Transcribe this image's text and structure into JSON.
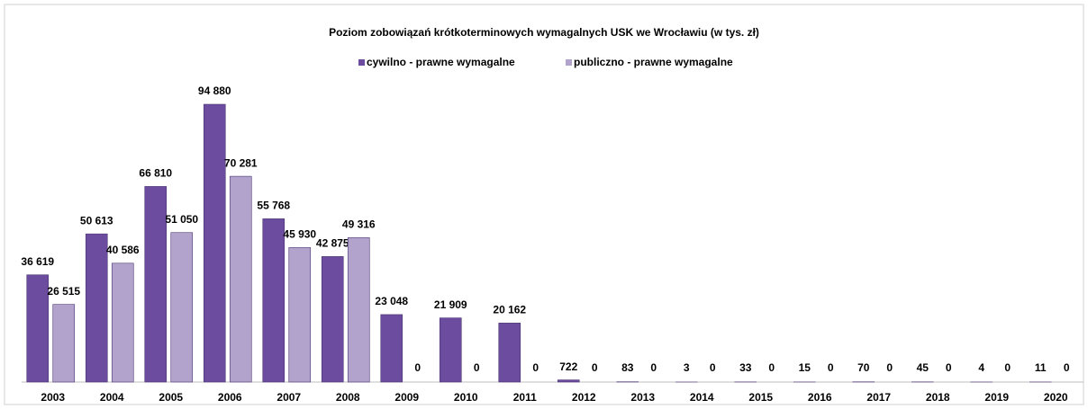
{
  "chart_data": {
    "type": "bar",
    "title": "Poziom zobowiązań krótkoterminowych wymagalnych USK we Wrocławiu (w tys. zł)",
    "categories": [
      "2003",
      "2004",
      "2005",
      "2006",
      "2007",
      "2008",
      "2009",
      "2010",
      "2011",
      "2012",
      "2013",
      "2014",
      "2015",
      "2016",
      "2017",
      "2018",
      "2019",
      "2020"
    ],
    "series": [
      {
        "name": "cywilno - prawne wymagalne",
        "color": "#6b4c9e",
        "values": [
          36619,
          50613,
          66810,
          94880,
          55768,
          42875,
          23048,
          21909,
          20162,
          722,
          83,
          3,
          33,
          15,
          70,
          45,
          4,
          11
        ],
        "value_labels": [
          "36 619",
          "50 613",
          "66 810",
          "94 880",
          "55 768",
          "42 875",
          "23 048",
          "21 909",
          "20 162",
          "722",
          "83",
          "3",
          "33",
          "15",
          "70",
          "45",
          "4",
          "11"
        ]
      },
      {
        "name": "publiczno - prawne wymagalne",
        "color": "#b2a3cc",
        "values": [
          26515,
          40586,
          51050,
          70281,
          45930,
          49316,
          0,
          0,
          0,
          0,
          0,
          0,
          0,
          0,
          0,
          0,
          0,
          0
        ],
        "value_labels": [
          "26 515",
          "40 586",
          "51 050",
          "70 281",
          "45 930",
          "49 316",
          "0",
          "0",
          "0",
          "0",
          "0",
          "0",
          "0",
          "0",
          "0",
          "0",
          "0",
          "0"
        ]
      }
    ],
    "legend": "top"
  }
}
